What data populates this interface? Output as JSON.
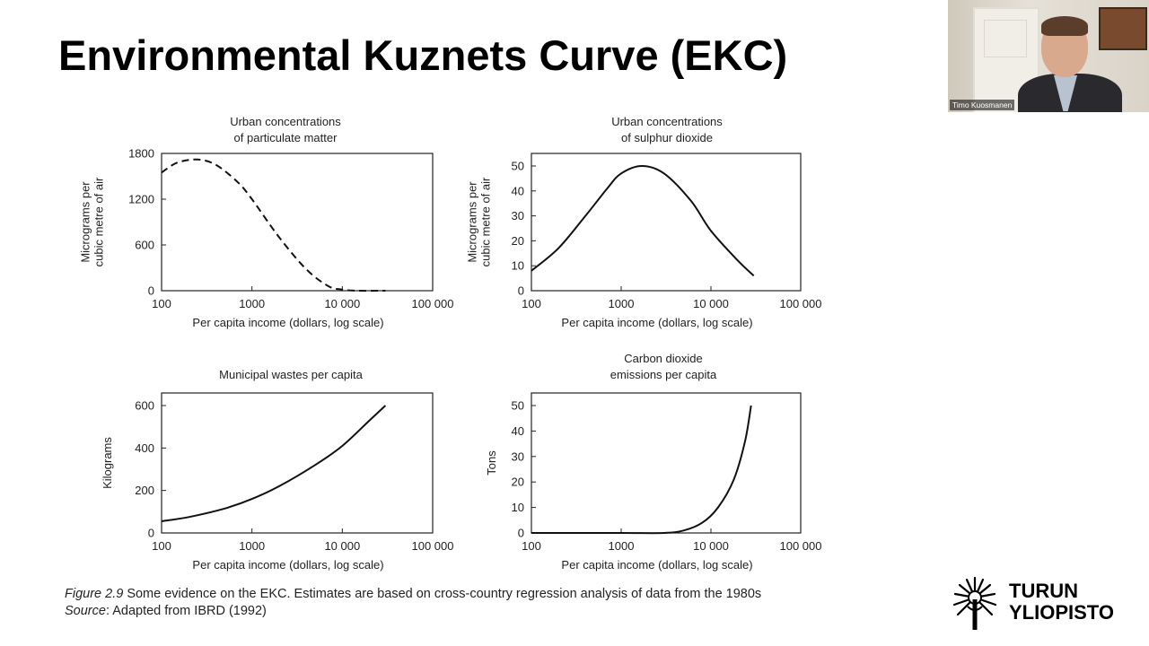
{
  "slide": {
    "title": "Environmental Kuznets Curve (EKC)",
    "caption_fig": "Figure 2.9",
    "caption_text": " Some evidence on the EKC. Estimates are based on cross-country regression analysis of data from the 1980s",
    "source_label": "Source",
    "source_text": ": Adapted from IBRD (1992)"
  },
  "webcam": {
    "name": "Timo Kuosmanen"
  },
  "logo": {
    "line1": "TURUN",
    "line2": "YLIOPISTO"
  },
  "chart_data": [
    {
      "type": "line",
      "title": [
        "Urban concentrations",
        "of particulate matter"
      ],
      "xlabel": "Per capita income (dollars, log scale)",
      "ylabel": [
        "Micrograms per",
        "cubic metre of air"
      ],
      "x_scale": "log",
      "xlim": [
        100,
        100000
      ],
      "ylim": [
        0,
        1800
      ],
      "xticks": [
        100,
        1000,
        10000,
        100000
      ],
      "xtick_labels": [
        "100",
        "1000",
        "10 000",
        "100 000"
      ],
      "yticks": [
        0,
        600,
        1200,
        1800
      ],
      "ytick_labels": [
        "0",
        "600",
        "1200",
        "1800"
      ],
      "line_style": "dashed",
      "x": [
        100,
        150,
        250,
        400,
        700,
        1000,
        2000,
        4000,
        7000,
        10000,
        15000,
        30000
      ],
      "y": [
        1550,
        1680,
        1720,
        1650,
        1420,
        1200,
        700,
        280,
        60,
        15,
        0,
        0
      ]
    },
    {
      "type": "line",
      "title": [
        "Urban concentrations",
        "of sulphur dioxide"
      ],
      "xlabel": "Per capita income (dollars, log scale)",
      "ylabel": [
        "Micrograms per",
        "cubic metre of air"
      ],
      "x_scale": "log",
      "xlim": [
        100,
        100000
      ],
      "ylim": [
        0,
        55
      ],
      "xticks": [
        100,
        1000,
        10000,
        100000
      ],
      "xtick_labels": [
        "100",
        "1000",
        "10 000",
        "100 000"
      ],
      "yticks": [
        0,
        10,
        20,
        30,
        40,
        50
      ],
      "ytick_labels": [
        "0",
        "10",
        "20",
        "30",
        "40",
        "50"
      ],
      "line_style": "solid",
      "x": [
        100,
        200,
        400,
        700,
        1000,
        1700,
        3000,
        6000,
        10000,
        20000,
        30000
      ],
      "y": [
        8,
        17,
        30,
        41,
        47,
        50,
        47,
        36,
        24,
        12,
        6
      ]
    },
    {
      "type": "line",
      "title": [
        "Municipal wastes per capita"
      ],
      "xlabel": "Per capita income (dollars, log scale)",
      "ylabel": [
        "Kilograms"
      ],
      "x_scale": "log",
      "xlim": [
        100,
        100000
      ],
      "ylim": [
        0,
        650
      ],
      "xticks": [
        100,
        1000,
        10000,
        100000
      ],
      "xtick_labels": [
        "100",
        "1000",
        "10 000",
        "100 000"
      ],
      "yticks": [
        0,
        200,
        400,
        600
      ],
      "ytick_labels": [
        "0",
        "200",
        "400",
        "600"
      ],
      "line_style": "solid",
      "x": [
        100,
        200,
        500,
        1000,
        2000,
        5000,
        10000,
        20000,
        30000
      ],
      "y": [
        55,
        75,
        115,
        160,
        220,
        320,
        410,
        530,
        600
      ]
    },
    {
      "type": "line",
      "title": [
        "Carbon dioxide",
        "emissions per capita"
      ],
      "xlabel": "Per capita income (dollars, log scale)",
      "ylabel": [
        "Tons"
      ],
      "x_scale": "log",
      "xlim": [
        100,
        100000
      ],
      "ylim": [
        0,
        55
      ],
      "xticks": [
        100,
        1000,
        10000,
        100000
      ],
      "xtick_labels": [
        "100",
        "1000",
        "10 000",
        "100 000"
      ],
      "yticks": [
        0,
        10,
        20,
        30,
        40,
        50
      ],
      "ytick_labels": [
        "0",
        "10",
        "20",
        "30",
        "40",
        "50"
      ],
      "line_style": "solid",
      "x": [
        100,
        1000,
        3000,
        5000,
        8000,
        12000,
        18000,
        24000,
        28000
      ],
      "y": [
        0,
        0,
        0,
        1,
        4,
        10,
        21,
        36,
        50
      ]
    }
  ]
}
